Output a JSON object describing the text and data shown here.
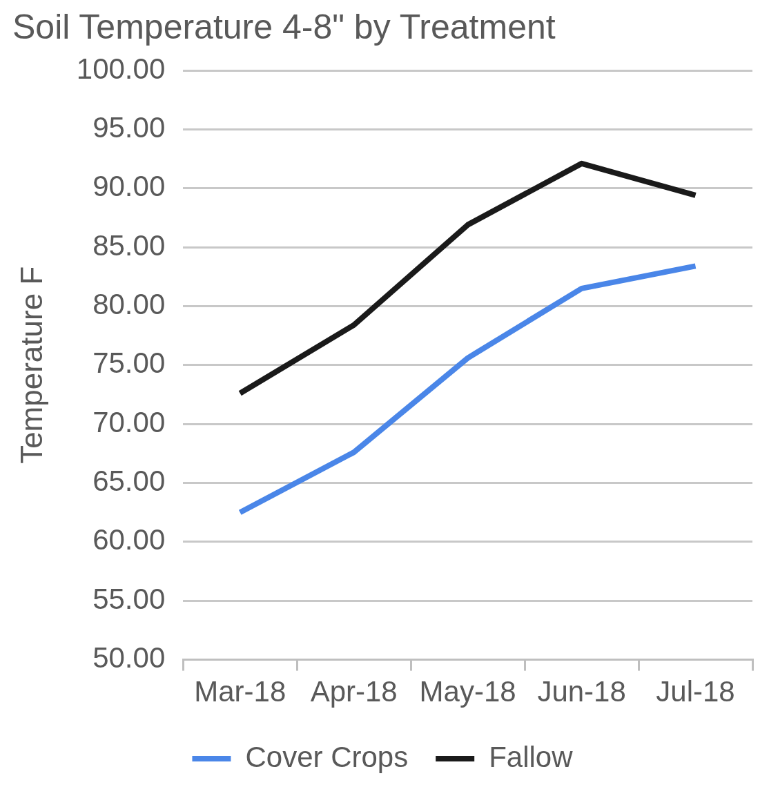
{
  "chart_data": {
    "type": "line",
    "title": "Soil Temperature 4-8\" by Treatment",
    "ylabel": "Temperature F",
    "categories": [
      "Mar-18",
      "Apr-18",
      "May-18",
      "Jun-18",
      "Jul-18"
    ],
    "series": [
      {
        "name": "Cover Crops",
        "color": "#4a86e8",
        "values": [
          62.5,
          67.6,
          75.6,
          81.5,
          83.4
        ]
      },
      {
        "name": "Fallow",
        "color": "#1a1a1a",
        "values": [
          72.6,
          78.4,
          86.9,
          92.1,
          89.4
        ]
      }
    ],
    "ylim": [
      50,
      100
    ],
    "yticks": [
      {
        "value": 50,
        "label": "50.00"
      },
      {
        "value": 55,
        "label": "55.00"
      },
      {
        "value": 60,
        "label": "60.00"
      },
      {
        "value": 65,
        "label": "65.00"
      },
      {
        "value": 70,
        "label": "70.00"
      },
      {
        "value": 75,
        "label": "75.00"
      },
      {
        "value": 80,
        "label": "80.00"
      },
      {
        "value": 85,
        "label": "85.00"
      },
      {
        "value": 90,
        "label": "90.00"
      },
      {
        "value": 95,
        "label": "95.00"
      },
      {
        "value": 100,
        "label": "100.00"
      }
    ],
    "grid": "y",
    "legend": "bottom",
    "marker": "none",
    "line_style": "solid"
  }
}
